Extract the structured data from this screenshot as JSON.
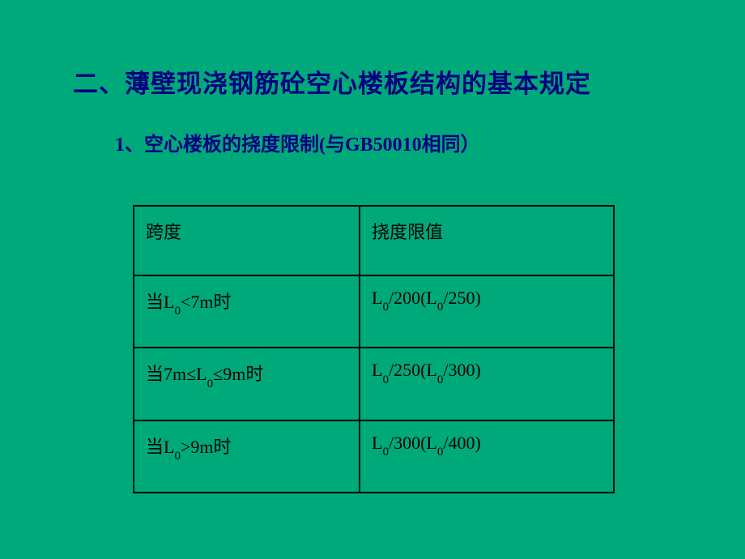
{
  "title": "二、薄壁现浇钢筋砼空心楼板结构的基本规定",
  "subtitle": "1、空心楼板的挠度限制(与GB50010相同）",
  "table": {
    "header": {
      "col1": "跨度",
      "col2": "挠度限值"
    },
    "rows": [
      {
        "col1_prefix": "当L",
        "col1_sub": "0",
        "col1_suffix": "<7m时",
        "col2_a_prefix": "L",
        "col2_a_sub": "0",
        "col2_a_suffix": "/200(L",
        "col2_b_sub": "0",
        "col2_b_suffix": "/250)"
      },
      {
        "col1_prefix": "当7m≤L",
        "col1_sub": "0",
        "col1_suffix": "≤9m时",
        "col2_a_prefix": "L",
        "col2_a_sub": "0",
        "col2_a_suffix": "/250(L",
        "col2_b_sub": "0",
        "col2_b_suffix": "/300)"
      },
      {
        "col1_prefix": "当L",
        "col1_sub": "0",
        "col1_suffix": ">9m时",
        "col2_a_prefix": "L",
        "col2_a_sub": "0",
        "col2_a_suffix": "/300(L",
        "col2_b_sub": "0",
        "col2_b_suffix": "/400)"
      }
    ]
  },
  "colors": {
    "background": "#00a97a",
    "title_color": "#000080",
    "text_color": "#000000",
    "border_color": "#000000"
  }
}
